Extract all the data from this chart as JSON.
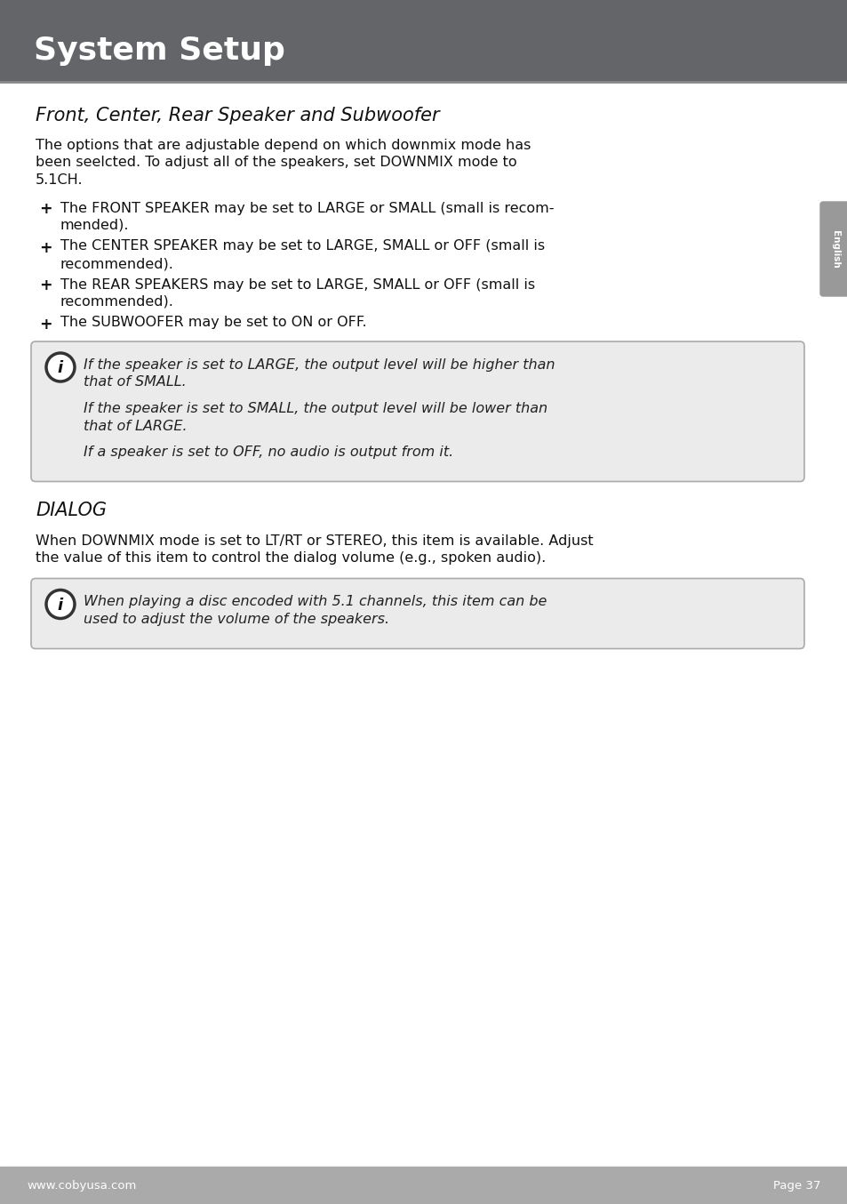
{
  "header_bg_color": "#636569",
  "header_text": "System Setup",
  "header_text_color": "#ffffff",
  "page_bg_color": "#ffffff",
  "footer_bg_color": "#aaaaaa",
  "footer_left": "www.cobyusa.com",
  "footer_right": "Page 37",
  "sidebar_color": "#999999",
  "sidebar_text": "English",
  "section1_title": "Front, Center, Rear Speaker and Subwoofer",
  "section1_body_lines": [
    "The options that are adjustable depend on which downmix mode has",
    "been seelcted. To adjust all of the speakers, set DOWNMIX mode to",
    "5.1CH."
  ],
  "bullets": [
    [
      "The FRONT SPEAKER may be set to LARGE or SMALL (small is recom-",
      "mended)."
    ],
    [
      "The CENTER SPEAKER may be set to LARGE, SMALL or OFF (small is",
      "recommended)."
    ],
    [
      "The REAR SPEAKERS may be set to LARGE, SMALL or OFF (small is",
      "recommended)."
    ],
    [
      "The SUBWOOFER may be set to ON or OFF."
    ]
  ],
  "infobox1_paras": [
    [
      "If the speaker is set to LARGE, the output level will be higher than",
      "that of SMALL."
    ],
    [
      "If the speaker is set to SMALL, the output level will be lower than",
      "that of LARGE."
    ],
    [
      "If a speaker is set to OFF, no audio is output from it."
    ]
  ],
  "section2_title": "DIALOG",
  "section2_body_lines": [
    "When DOWNMIX mode is set to LT/RT or STEREO, this item is available. Adjust",
    "the value of this item to control the dialog volume (e.g., spoken audio)."
  ],
  "infobox2_paras": [
    [
      "When playing a disc encoded with 5.1 channels, this item can be",
      "used to adjust the volume of the speakers."
    ]
  ],
  "body_font_size": 11.5,
  "bullet_font_size": 11.5,
  "section_title_size": 15,
  "header_font_size": 26
}
